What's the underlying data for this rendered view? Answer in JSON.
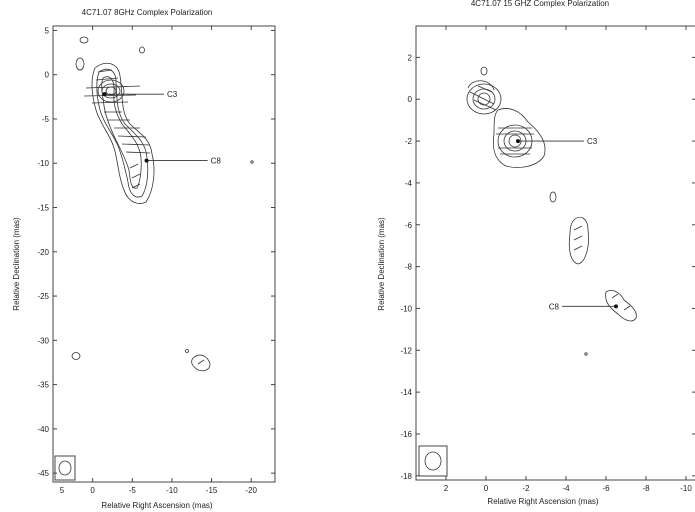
{
  "panels": [
    {
      "title": "4C71.07 8GHz Complex Polarization",
      "xlabel": "Relative Right  Ascension (mas)",
      "ylabel": "Relative Declination (mas)",
      "xlim": [
        5,
        -23
      ],
      "ylim": [
        -46,
        5.5
      ],
      "xticks": [
        5,
        0,
        -5,
        -10,
        -15,
        -20
      ],
      "xtick_labels": [
        "5",
        "0",
        "-5",
        "-10",
        "-15",
        "-20"
      ],
      "yticks": [
        5,
        0,
        -5,
        -10,
        -15,
        -20,
        -25,
        -30,
        -35,
        -40,
        -45
      ],
      "ytick_labels": [
        "5",
        "0",
        "-5",
        "-10",
        "-15",
        "-20",
        "-25",
        "-30",
        "-35",
        "-40",
        "-45"
      ],
      "components": [
        {
          "label": "C3",
          "x": -1.5,
          "y": -2.2,
          "label_x": -9.0
        },
        {
          "label": "C8",
          "x": -6.8,
          "y": -9.7,
          "label_x": -14.5
        }
      ]
    },
    {
      "title": "4C71.07 15 GHZ Complex Polarization",
      "xlabel": "Relative Right  Ascension (mas)",
      "ylabel": "Relative Declination (mas)",
      "xlim": [
        3.5,
        -10.5
      ],
      "ylim": [
        -18.2,
        3.5
      ],
      "xticks": [
        2,
        0,
        -2,
        -4,
        -6,
        -8,
        -10
      ],
      "xtick_labels": [
        "2",
        "0",
        "-2",
        "-4",
        "-6",
        "-8",
        "-10"
      ],
      "yticks": [
        2,
        0,
        -2,
        -4,
        -6,
        -8,
        -10,
        -12,
        -14,
        -16,
        -18
      ],
      "ytick_labels": [
        "2",
        "0",
        "-2",
        "-4",
        "-6",
        "-8",
        "-10",
        "-12",
        "-14",
        "-16",
        "-18"
      ],
      "components": [
        {
          "label": "C3",
          "x": -1.6,
          "y": -2.0,
          "label_x": -4.9
        },
        {
          "label": "C8",
          "x": -6.5,
          "y": -9.9,
          "label_x": -3.8
        }
      ]
    }
  ]
}
